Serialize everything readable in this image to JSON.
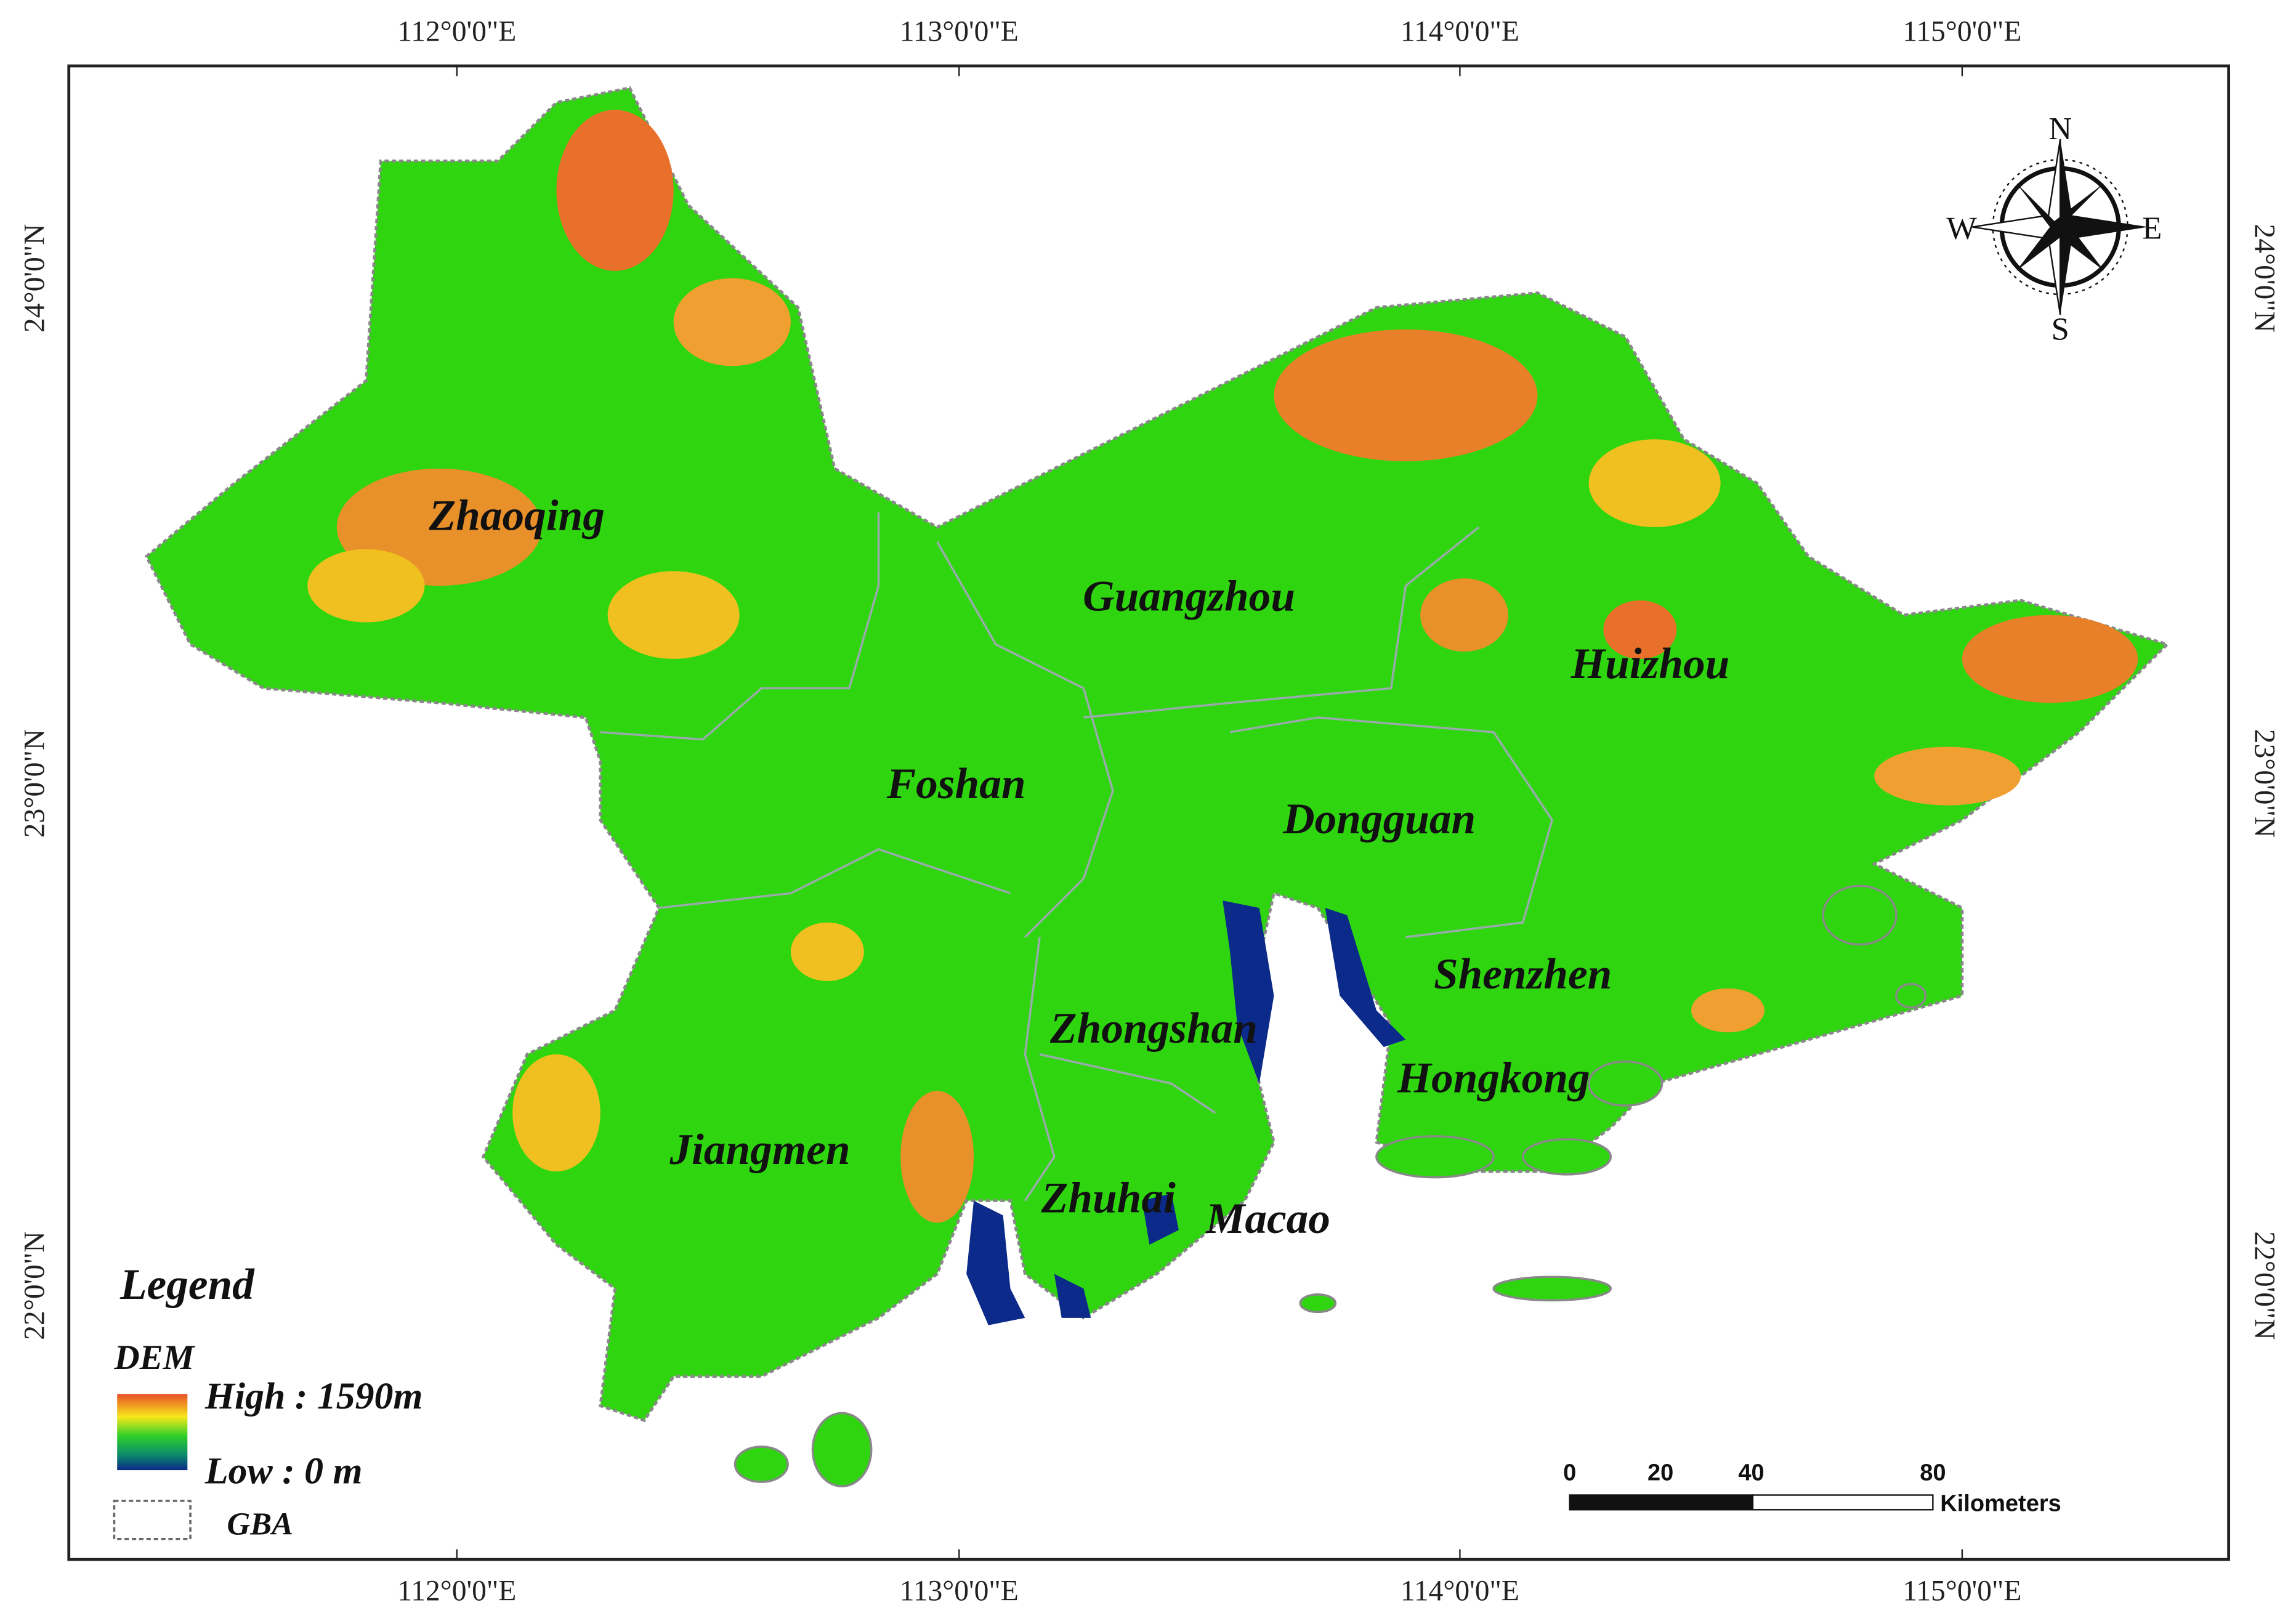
{
  "longitude_labels": [
    "112°0'0\"E",
    "113°0'0\"E",
    "114°0'0\"E",
    "115°0'0\"E"
  ],
  "latitude_labels": [
    "24°0'0\"N",
    "23°0'0\"N",
    "22°0'0\"N"
  ],
  "cities": [
    "Zhaoqing",
    "Guangzhou",
    "Huizhou",
    "Foshan",
    "Dongguan",
    "Shenzhen",
    "Zhongshan",
    "Hongkong",
    "Jiangmen",
    "Zhuhai",
    "Macao"
  ],
  "legend": {
    "title": "Legend",
    "layer": "DEM",
    "high": "High : 1590m",
    "low": "Low : 0 m",
    "boundary": "GBA"
  },
  "scale_bar": {
    "ticks": [
      0,
      20,
      40,
      80
    ],
    "unit": "Kilometers"
  },
  "compass": {
    "north": "N",
    "east": "E",
    "south": "S",
    "west": "W"
  }
}
